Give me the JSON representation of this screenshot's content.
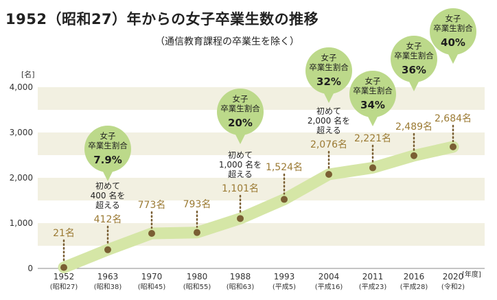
{
  "title": "1952（昭和27）年からの女子卒業生数の推移",
  "subtitle": "（通信教育課程の卒業生を除く）",
  "chart_data": {
    "type": "area",
    "title": "1952（昭和27）年からの女子卒業生数の推移",
    "subtitle": "（通信教育課程の卒業生を除く）",
    "y_unit": "[名]",
    "x_unit": "[年度]",
    "ylim": [
      0,
      4000
    ],
    "y_ticks": [
      "0",
      "1,000",
      "2,000",
      "3,000",
      "4,000"
    ],
    "y_tick_values": [
      0,
      1000,
      2000,
      3000,
      4000
    ],
    "grid": "alternating horizontal bands",
    "series": [
      {
        "values": [
          21,
          412,
          773,
          793,
          1101,
          1524,
          2076,
          2221,
          2489,
          2684
        ],
        "labels": [
          "21名",
          "412名",
          "773名",
          "793名",
          "1,101名",
          "1,524名",
          "2,076名",
          "2,221名",
          "2,489名",
          "2,684名"
        ]
      }
    ],
    "categories": [
      "1952",
      "1963",
      "1970",
      "1980",
      "1988",
      "1993",
      "2004",
      "2011",
      "2016",
      "2020"
    ],
    "categories_sub": [
      "(昭和27)",
      "(昭和38)",
      "(昭和45)",
      "(昭和55)",
      "(昭和63)",
      "(平成5)",
      "(平成16)",
      "(平成23)",
      "(平成28)",
      "(令和2)"
    ],
    "annotations": [
      {
        "index": 1,
        "lines": [
          "初めて",
          "400 名を",
          "超える"
        ]
      },
      {
        "index": 4,
        "lines": [
          "初めて",
          "1,000 名を",
          "超える"
        ]
      },
      {
        "index": 6,
        "lines": [
          "初めて",
          "2,000 名を",
          "超える"
        ]
      }
    ],
    "callouts": [
      {
        "index": 1,
        "label": "女子\n卒業生割合",
        "value": "7.9%"
      },
      {
        "index": 4,
        "label": "女子\n卒業生割合",
        "value": "20%"
      },
      {
        "index": 6,
        "label": "女子\n卒業生割合",
        "value": "32%"
      },
      {
        "index": 7,
        "label": "女子\n卒業生割合",
        "value": "34%"
      },
      {
        "index": 8,
        "label": "女子\n卒業生割合",
        "value": "36%"
      },
      {
        "index": 9,
        "label": "女子\n卒業生割合",
        "value": "40%"
      }
    ],
    "colors": {
      "band": "#f2f0e1",
      "line": "#d5e6a6",
      "point": "#7a5f33",
      "value_text": "#9b7a33",
      "callout_fill": "#bcd98a",
      "callout_text": "#1e1e1e"
    }
  }
}
